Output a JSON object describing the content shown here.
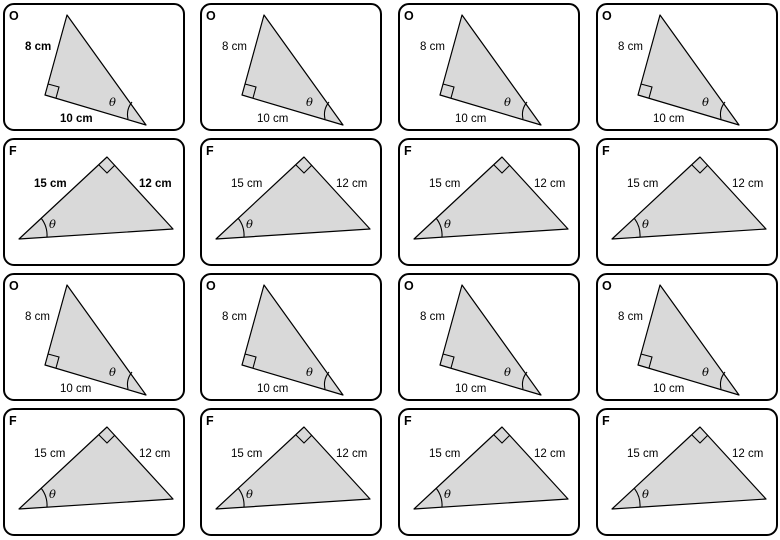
{
  "sheet": {
    "rows": [
      {
        "type": "O",
        "side1": "8 cm",
        "side2": "10 cm",
        "angle": "θ"
      },
      {
        "type": "F",
        "side1": "15 cm",
        "side2": "12 cm",
        "angle": "θ"
      },
      {
        "type": "O",
        "side1": "8 cm",
        "side2": "10 cm",
        "angle": "θ"
      },
      {
        "type": "F",
        "side1": "15 cm",
        "side2": "12 cm",
        "angle": "θ"
      }
    ],
    "columns": 4
  },
  "colors": {
    "triangle_fill": "#d9d9d9",
    "stroke": "#000000",
    "background": "#ffffff"
  }
}
